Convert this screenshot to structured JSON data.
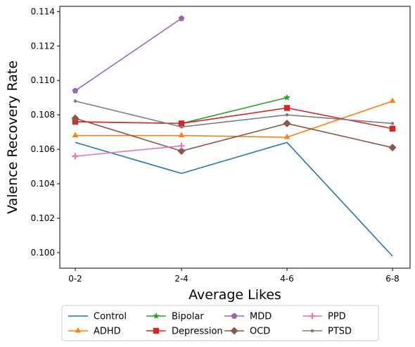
{
  "chart_data": {
    "type": "line",
    "title": "",
    "xlabel": "Average Likes",
    "ylabel": "Valence Recovery Rate",
    "categories": [
      "0-2",
      "2-4",
      "4-6",
      "6-8"
    ],
    "ylim": [
      0.0991,
      0.1143
    ],
    "yticks": [
      "0.100",
      "0.102",
      "0.104",
      "0.106",
      "0.108",
      "0.110",
      "0.112",
      "0.114"
    ],
    "grid": false,
    "legend_position": "bottom-center",
    "series": [
      {
        "name": "Control",
        "color": "#1f77b4",
        "marker": "none",
        "values": [
          0.1064,
          0.1046,
          0.1064,
          0.0998
        ]
      },
      {
        "name": "ADHD",
        "color": "#ff7f0e",
        "marker": "triangle",
        "values": [
          0.1068,
          0.1068,
          0.1067,
          0.1088
        ]
      },
      {
        "name": "Bipolar",
        "color": "#2ca02c",
        "marker": "star",
        "values": [
          0.1076,
          0.1075,
          0.109,
          null
        ]
      },
      {
        "name": "Depression",
        "color": "#d62728",
        "marker": "square",
        "values": [
          0.1076,
          0.1075,
          0.1084,
          0.1072
        ]
      },
      {
        "name": "MDD",
        "color": "#9467bd",
        "marker": "pentagon",
        "values": [
          0.1094,
          0.1136,
          null,
          null
        ]
      },
      {
        "name": "OCD",
        "color": "#8c564b",
        "marker": "diamond",
        "values": [
          0.1078,
          0.1059,
          0.1075,
          0.1061
        ]
      },
      {
        "name": "PPD",
        "color": "#e377c2",
        "marker": "plus",
        "values": [
          0.1056,
          0.1062,
          null,
          null
        ]
      },
      {
        "name": "PTSD",
        "color": "#7f7f7f",
        "marker": "dot",
        "values": [
          0.1088,
          0.1073,
          0.108,
          0.1075
        ]
      }
    ]
  }
}
